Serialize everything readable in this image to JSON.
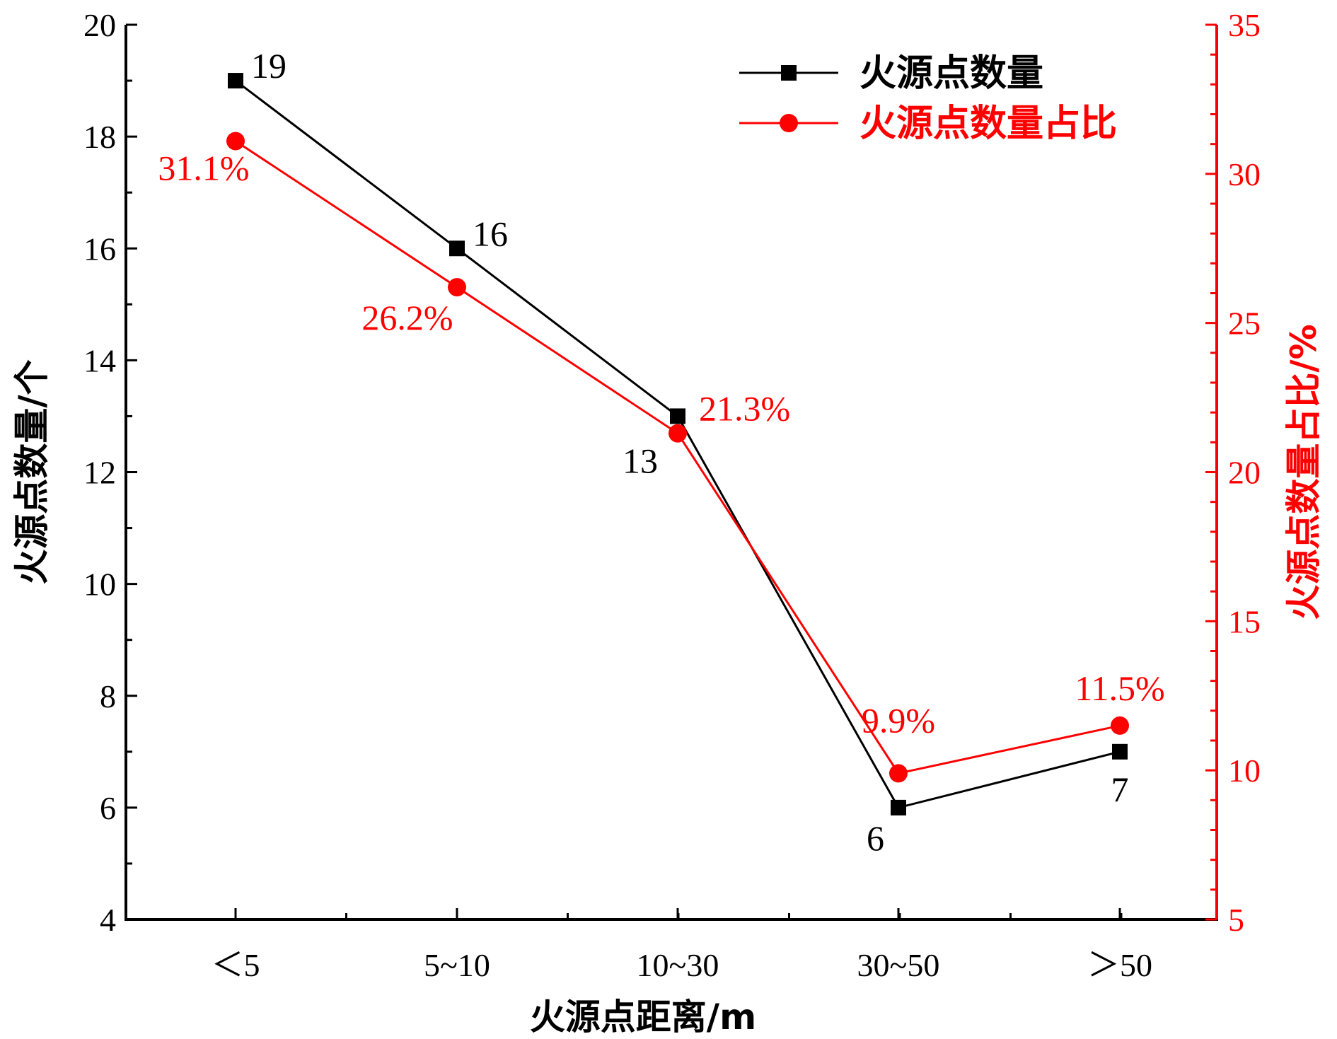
{
  "chart_data": {
    "type": "line",
    "categories": [
      "＜5",
      "5~10",
      "10~30",
      "30~50",
      "＞50"
    ],
    "xlabel": "火源点距离/m",
    "y_left": {
      "label": "火源点数量/个",
      "lim": [
        4,
        20
      ],
      "ticks": [
        4,
        6,
        8,
        10,
        12,
        14,
        16,
        18,
        20
      ]
    },
    "y_right": {
      "label": "火源点数量占比/%",
      "lim": [
        5,
        35
      ],
      "ticks": [
        5,
        10,
        15,
        20,
        25,
        30,
        35
      ]
    },
    "legend_position": "top-right",
    "grid": false,
    "series": [
      {
        "name": "火源点数量",
        "axis": "left",
        "marker": "square",
        "color": "#000000",
        "values": [
          19,
          16,
          13,
          6,
          7
        ],
        "labels": [
          "19",
          "16",
          "13",
          "6",
          "7"
        ]
      },
      {
        "name": "火源点数量占比",
        "axis": "right",
        "marker": "circle",
        "color": "#ff0000",
        "values": [
          31.1,
          26.2,
          21.3,
          9.9,
          11.5
        ],
        "labels": [
          "31.1%",
          "26.2%",
          "21.3%",
          "9.9%",
          "11.5%"
        ]
      }
    ]
  }
}
